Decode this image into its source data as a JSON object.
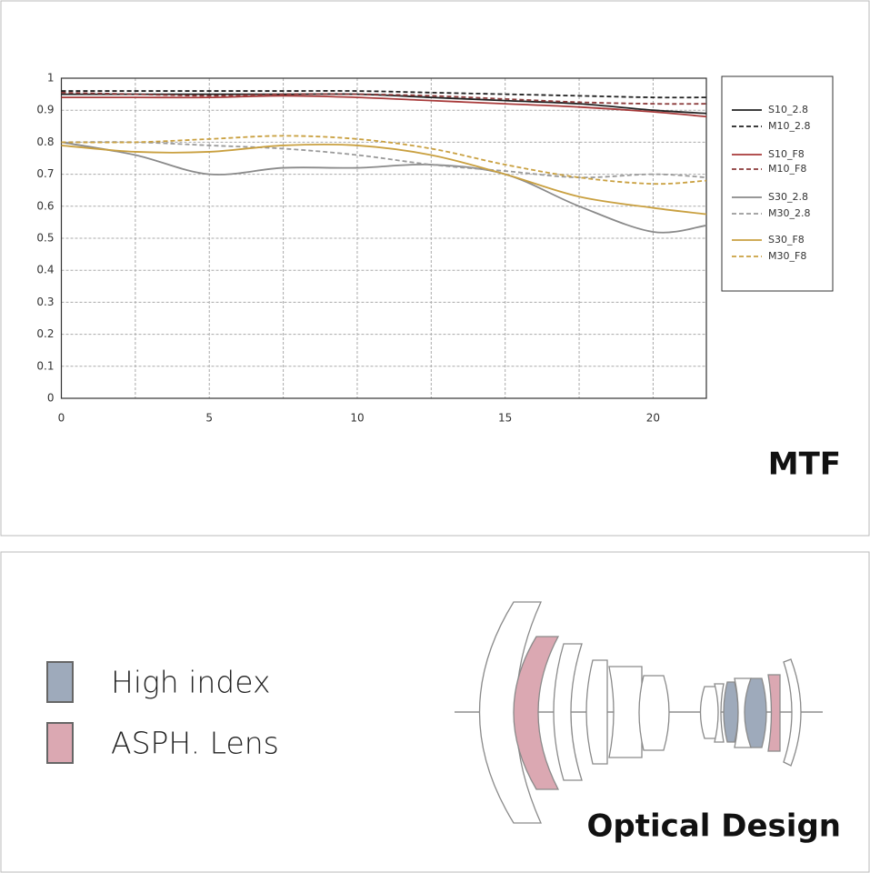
{
  "chart_data": {
    "type": "line",
    "title": "MTF",
    "x": [
      0,
      2.5,
      5,
      7.5,
      10,
      12.5,
      15,
      17.5,
      20,
      21.8
    ],
    "series": [
      {
        "name": "S10_2.8",
        "color": "#222222",
        "dashed": false,
        "values": [
          0.95,
          0.95,
          0.95,
          0.95,
          0.95,
          0.94,
          0.93,
          0.92,
          0.9,
          0.89
        ]
      },
      {
        "name": "M10_2.8",
        "color": "#222222",
        "dashed": true,
        "values": [
          0.96,
          0.96,
          0.96,
          0.96,
          0.96,
          0.955,
          0.95,
          0.945,
          0.94,
          0.94
        ]
      },
      {
        "name": "S10_F8",
        "color": "#a83a3a",
        "dashed": false,
        "values": [
          0.94,
          0.94,
          0.94,
          0.945,
          0.94,
          0.93,
          0.92,
          0.91,
          0.895,
          0.88
        ]
      },
      {
        "name": "M10_F8",
        "color": "#8b3a3a",
        "dashed": true,
        "values": [
          0.955,
          0.95,
          0.945,
          0.95,
          0.95,
          0.945,
          0.935,
          0.925,
          0.92,
          0.92
        ]
      },
      {
        "name": "S30_2.8",
        "color": "#8a8a8a",
        "dashed": false,
        "values": [
          0.8,
          0.76,
          0.7,
          0.72,
          0.72,
          0.73,
          0.7,
          0.6,
          0.52,
          0.54
        ]
      },
      {
        "name": "M30_2.8",
        "color": "#9a9a9a",
        "dashed": true,
        "values": [
          0.8,
          0.8,
          0.79,
          0.78,
          0.76,
          0.73,
          0.71,
          0.69,
          0.7,
          0.69
        ]
      },
      {
        "name": "S30_F8",
        "color": "#c9a040",
        "dashed": false,
        "values": [
          0.79,
          0.77,
          0.77,
          0.79,
          0.79,
          0.76,
          0.7,
          0.63,
          0.595,
          0.575
        ]
      },
      {
        "name": "M30_F8",
        "color": "#c9a040",
        "dashed": true,
        "values": [
          0.8,
          0.8,
          0.81,
          0.82,
          0.81,
          0.78,
          0.73,
          0.69,
          0.67,
          0.68
        ]
      }
    ],
    "xlim": [
      0,
      21.8
    ],
    "ylim": [
      0,
      1
    ],
    "xticks": [
      0,
      5,
      10,
      15,
      20
    ],
    "xminor_ticks": [
      2.5,
      7.5,
      12.5,
      17.5
    ],
    "yticks": [
      0,
      0.1,
      0.2,
      0.3,
      0.4,
      0.5,
      0.6,
      0.7,
      0.8,
      0.9,
      1
    ],
    "grid": true,
    "legend": "right"
  },
  "optical_design": {
    "title": "Optical Design",
    "legend": [
      {
        "label": "High index",
        "color": "#9eaabb"
      },
      {
        "label": "ASPH. Lens",
        "color": "#dba8b2"
      }
    ]
  }
}
